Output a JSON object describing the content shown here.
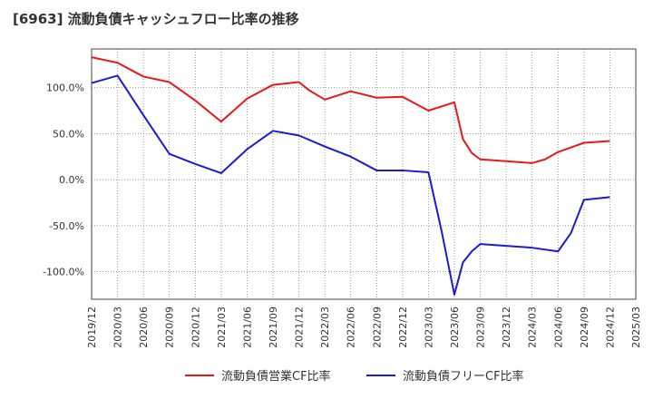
{
  "chart_data": {
    "type": "line",
    "title": "[6963]  流動負債キャッシュフロー比率の推移",
    "xlabel": "",
    "ylabel": "",
    "ylim": [
      -130,
      142
    ],
    "y_ticks": [
      100,
      50,
      0,
      -50,
      -100
    ],
    "y_tick_labels": [
      "100.0%",
      "50.0%",
      "0.0%",
      "-50.0%",
      "-100.0%"
    ],
    "grid": true,
    "x_ticks": [
      "2019/12",
      "2020/03",
      "2020/06",
      "2020/09",
      "2020/12",
      "2021/03",
      "2021/06",
      "2021/09",
      "2021/12",
      "2022/03",
      "2022/06",
      "2022/09",
      "2022/12",
      "2023/03",
      "2023/06",
      "2023/09",
      "2023/12",
      "2024/03",
      "2024/06",
      "2024/09",
      "2024/12",
      "2025/03"
    ],
    "legend_position": "bottom",
    "series": [
      {
        "name": "流動負債営業CF比率",
        "color": "#e8191b",
        "points": [
          [
            0,
            133
          ],
          [
            1,
            127
          ],
          [
            2,
            112
          ],
          [
            3,
            106
          ],
          [
            4,
            86
          ],
          [
            5,
            63
          ],
          [
            6,
            88
          ],
          [
            7,
            103
          ],
          [
            8,
            106
          ],
          [
            8.4,
            97
          ],
          [
            9,
            87
          ],
          [
            10,
            96
          ],
          [
            11,
            89
          ],
          [
            12,
            90
          ],
          [
            13,
            75
          ],
          [
            14,
            84
          ],
          [
            14.33,
            44
          ],
          [
            14.67,
            29
          ],
          [
            15,
            22
          ],
          [
            16,
            20
          ],
          [
            17,
            18
          ],
          [
            17.5,
            22
          ],
          [
            18,
            30
          ],
          [
            19,
            40
          ],
          [
            20,
            42
          ]
        ]
      },
      {
        "name": "流動負債フリーCF比率",
        "color": "#1b1bd4",
        "points": [
          [
            0,
            105
          ],
          [
            1,
            113
          ],
          [
            2,
            70
          ],
          [
            3,
            28
          ],
          [
            4,
            17
          ],
          [
            5,
            7
          ],
          [
            6,
            33
          ],
          [
            7,
            53
          ],
          [
            8,
            48
          ],
          [
            9,
            36
          ],
          [
            10,
            25
          ],
          [
            11,
            10
          ],
          [
            12,
            10
          ],
          [
            13,
            8
          ],
          [
            13.5,
            -55
          ],
          [
            14,
            -125
          ],
          [
            14.33,
            -90
          ],
          [
            14.67,
            -78
          ],
          [
            15,
            -70
          ],
          [
            16,
            -72
          ],
          [
            17,
            -74
          ],
          [
            18,
            -78
          ],
          [
            18.5,
            -58
          ],
          [
            19,
            -22
          ],
          [
            20,
            -19
          ]
        ]
      }
    ]
  }
}
